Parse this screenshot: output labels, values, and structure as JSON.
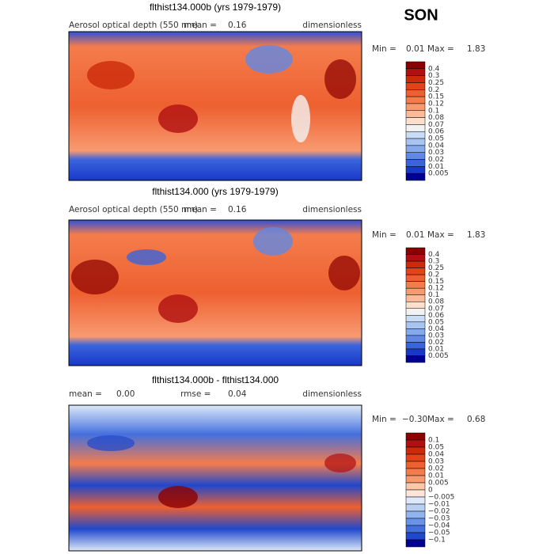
{
  "season": "SON",
  "panels": [
    {
      "title": "flthist134.000b (yrs 1979-1979)",
      "subtitle": {
        "variable": "Aerosol optical depth (550 nm)",
        "mean_label": "mean =",
        "mean": "0.16",
        "units": "dimensionless"
      },
      "range": {
        "min_label": "Min =",
        "min": "0.01",
        "max_label": "Max =",
        "max": "1.83"
      },
      "colorbar": {
        "colors": [
          "#8b0000",
          "#b01010",
          "#cc2a0a",
          "#e04418",
          "#ee6030",
          "#f47c4c",
          "#f89a70",
          "#fbbb98",
          "#fde0cc",
          "#f2f2f2",
          "#c8dcf5",
          "#a8c4f0",
          "#86a8ec",
          "#6088e4",
          "#3a64dc",
          "#1838c8",
          "#000090"
        ],
        "labels": [
          "0.4",
          "0.3",
          "0.25",
          "0.2",
          "0.15",
          "0.12",
          "0.1",
          "0.08",
          "0.07",
          "0.06",
          "0.05",
          "0.04",
          "0.03",
          "0.02",
          "0.01",
          "0.005"
        ]
      }
    },
    {
      "title": "flthist134.000 (yrs 1979-1979)",
      "subtitle": {
        "variable": "Aerosol optical depth (550 nm)",
        "mean_label": "mean =",
        "mean": "0.16",
        "units": "dimensionless"
      },
      "range": {
        "min_label": "Min =",
        "min": "0.01",
        "max_label": "Max =",
        "max": "1.83"
      },
      "colorbar": {
        "colors": [
          "#8b0000",
          "#b01010",
          "#cc2a0a",
          "#e04418",
          "#ee6030",
          "#f47c4c",
          "#f89a70",
          "#fbbb98",
          "#fde0cc",
          "#f2f2f2",
          "#c8dcf5",
          "#a8c4f0",
          "#86a8ec",
          "#6088e4",
          "#3a64dc",
          "#1838c8",
          "#000090"
        ],
        "labels": [
          "0.4",
          "0.3",
          "0.25",
          "0.2",
          "0.15",
          "0.12",
          "0.1",
          "0.08",
          "0.07",
          "0.06",
          "0.05",
          "0.04",
          "0.03",
          "0.02",
          "0.01",
          "0.005"
        ]
      }
    },
    {
      "title": "flthist134.000b - flthist134.000",
      "subtitle": {
        "mean_label": "mean =",
        "mean": "0.00",
        "rmse_label": "rmse =",
        "rmse": "0.04",
        "units": "dimensionless"
      },
      "range": {
        "min_label": "Min =",
        "min": "−0.30",
        "max_label": "Max =",
        "max": "0.68"
      },
      "colorbar": {
        "colors": [
          "#8b0000",
          "#b01010",
          "#cc2a0a",
          "#e04418",
          "#ee6030",
          "#f47c4c",
          "#f89a70",
          "#fbc8a8",
          "#fde6d8",
          "#dde9f8",
          "#b8d0f2",
          "#92b4ee",
          "#6a92e6",
          "#4470de",
          "#2048cc",
          "#000090"
        ],
        "labels": [
          "0.1",
          "0.05",
          "0.04",
          "0.03",
          "0.02",
          "0.01",
          "0.005",
          "0",
          "−0.005",
          "−0.01",
          "−0.02",
          "−0.03",
          "−0.04",
          "−0.05",
          "−0.1"
        ]
      }
    }
  ]
}
